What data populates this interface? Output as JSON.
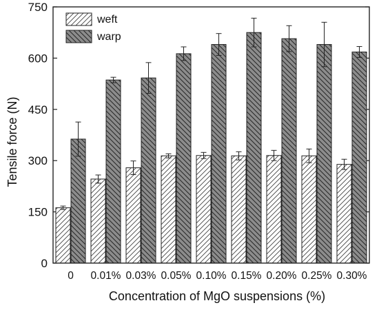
{
  "chart_data": {
    "type": "bar",
    "title": "",
    "xlabel": "Concentration of MgO suspensions (%)",
    "ylabel": "Tensile force (N)",
    "ylim": [
      0,
      750
    ],
    "yticks": [
      "0",
      "150",
      "300",
      "450",
      "600",
      "750"
    ],
    "categories": [
      "0",
      "0.01%",
      "0.03%",
      "0.05%",
      "0.10%",
      "0.15%",
      "0.20%",
      "0.25%",
      "0.30%"
    ],
    "legend_position": "top-left",
    "grid": false,
    "series": [
      {
        "name": "weft",
        "fill": "hatched-white",
        "values": [
          162,
          246,
          279,
          314,
          315,
          314,
          315,
          314,
          289
        ],
        "errors": [
          5,
          12,
          20,
          6,
          9,
          12,
          15,
          20,
          15
        ]
      },
      {
        "name": "warp",
        "fill": "hatched-gray",
        "values": [
          363,
          536,
          542,
          613,
          640,
          675,
          657,
          640,
          618
        ],
        "errors": [
          50,
          8,
          45,
          20,
          32,
          42,
          38,
          65,
          16
        ]
      }
    ],
    "colors": {
      "weft_fill": "#ffffff",
      "warp_fill": "#8c8c8c",
      "stroke": "#222222"
    }
  }
}
